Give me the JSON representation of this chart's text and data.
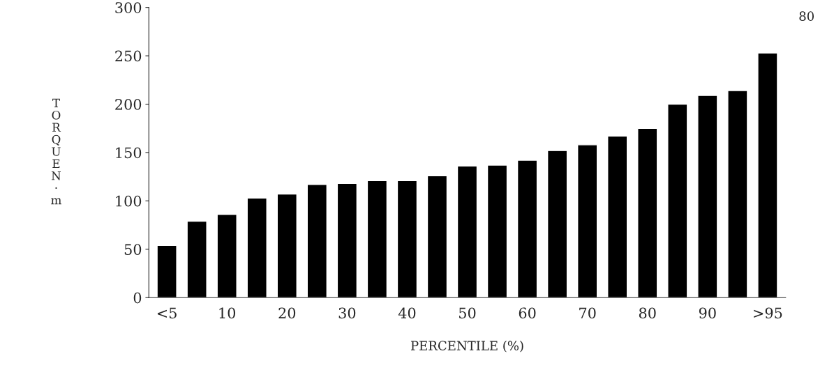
{
  "chart_data": {
    "type": "bar",
    "categories": [
      "<5",
      null,
      "10",
      null,
      "20",
      null,
      "30",
      null,
      "40",
      null,
      "50",
      null,
      "60",
      null,
      "70",
      null,
      "80",
      null,
      "90",
      null,
      ">95"
    ],
    "values": [
      54,
      79,
      86,
      103,
      107,
      117,
      118,
      121,
      121,
      126,
      136,
      137,
      142,
      152,
      158,
      167,
      175,
      200,
      209,
      214,
      253
    ],
    "color": "#000000",
    "xlabel": "PERCENTILE (%)",
    "ylabel": "TORQUE N·m",
    "ylim": [
      0,
      300
    ],
    "yticks": [
      0,
      50,
      100,
      150,
      200,
      250,
      300
    ],
    "grid": false,
    "annotations": [
      "80"
    ]
  }
}
